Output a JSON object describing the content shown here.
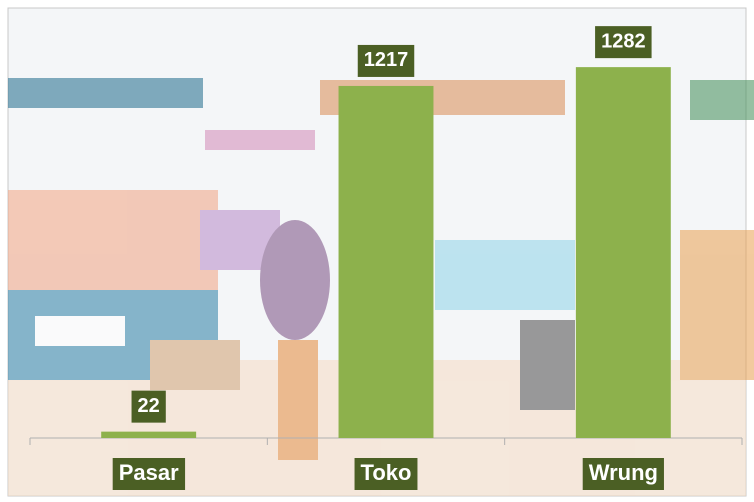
{
  "chart_data": {
    "type": "bar",
    "categories": [
      "Pasar",
      "Toko",
      "Wrung"
    ],
    "values": [
      22,
      1217,
      1282
    ],
    "color": "#8db14c",
    "label_color": "#4b5f24",
    "ylim": [
      0,
      1400
    ]
  }
}
